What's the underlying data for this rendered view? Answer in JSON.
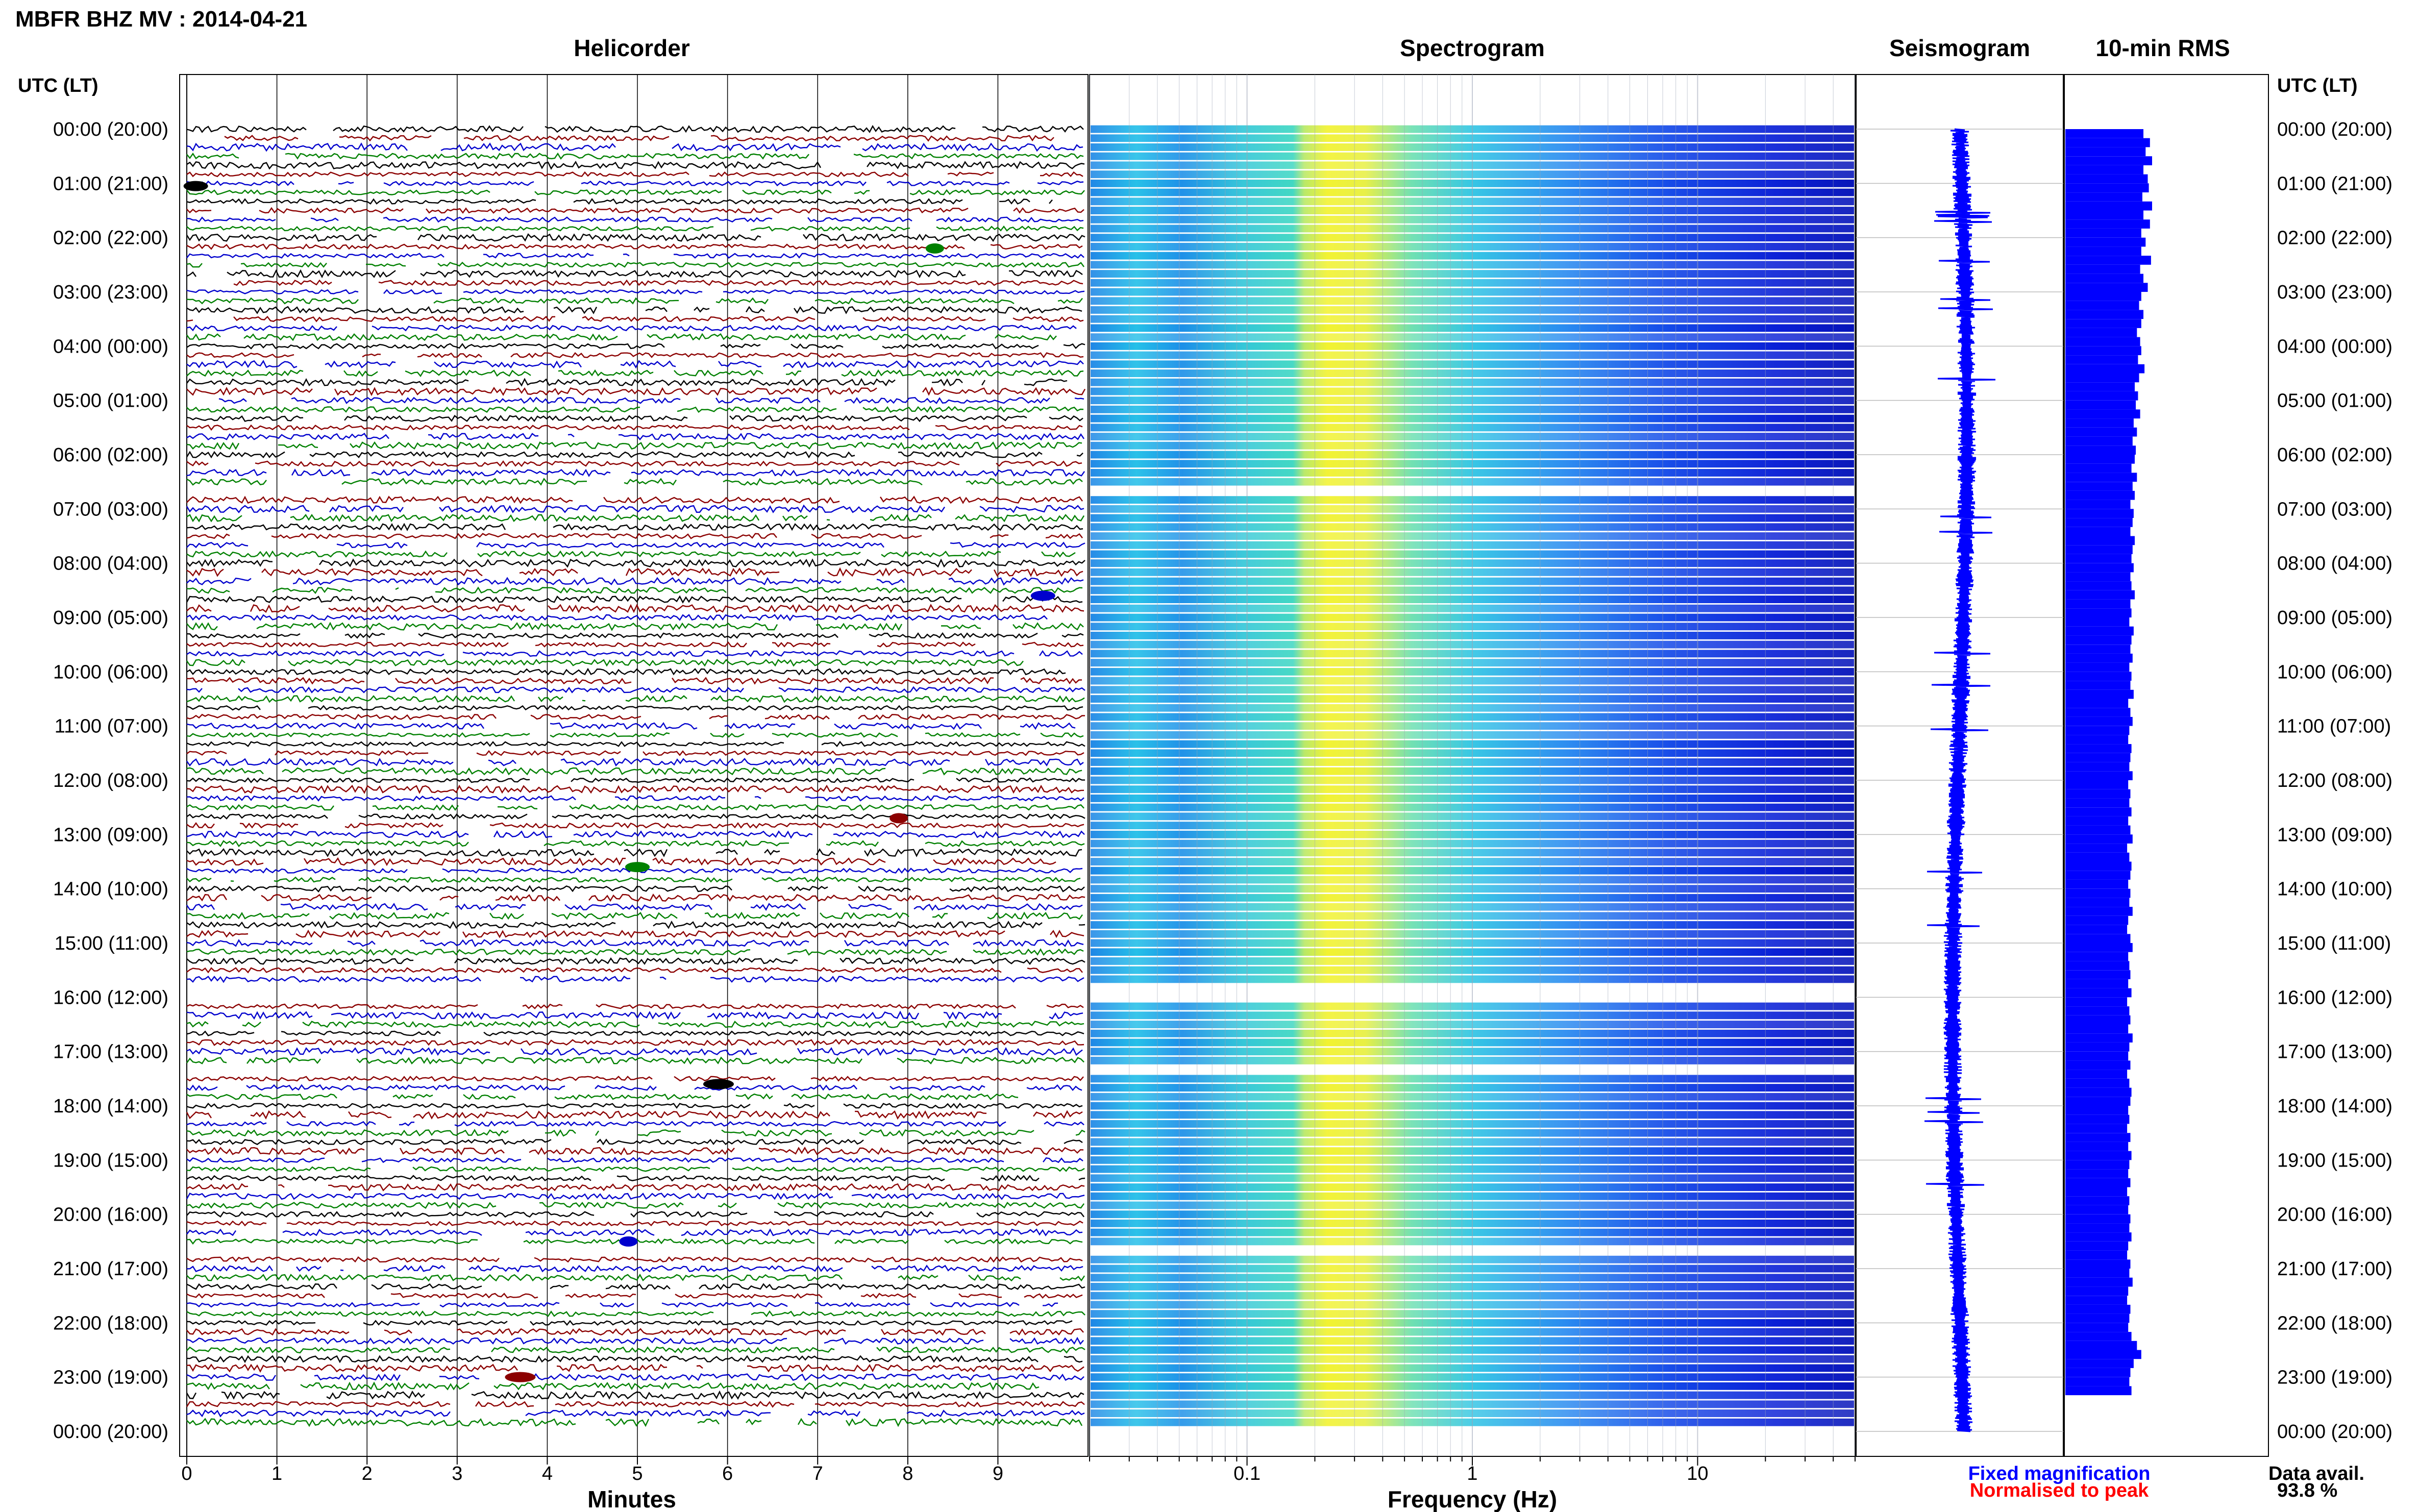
{
  "header": {
    "title": "MBFR BHZ MV : 2014-04-21",
    "utc_label_left": "UTC (LT)",
    "utc_label_right": "UTC (LT)"
  },
  "panels": {
    "helicorder": "Helicorder",
    "spectrogram": "Spectrogram",
    "seismogram": "Seismogram",
    "rms": "10-min RMS"
  },
  "axes": {
    "minutes_label": "Minutes",
    "frequency_label": "Frequency (Hz)",
    "minute_ticks": [
      "0",
      "1",
      "2",
      "3",
      "4",
      "5",
      "6",
      "7",
      "8",
      "9"
    ],
    "frequency_ticks": [
      "0.1",
      "1",
      "10"
    ]
  },
  "footer": {
    "fixed_magnification": "Fixed magnification",
    "normalised_to_peak": "Normalised to peak",
    "data_avail_label": "Data avail.",
    "data_avail_value": "93.8 %"
  },
  "colors": {
    "trace_cycle": [
      "#000000",
      "#8b0000",
      "#0000cd",
      "#008000"
    ],
    "fixed_magnification": "#0000ff",
    "normalised_to_peak": "#ff0000",
    "rms_bar": "#0000ff",
    "seismogram_trace": "#0000ff"
  },
  "chart_data": {
    "type": "heatmap",
    "hour_labels": [
      "00:00 (20:00)",
      "01:00 (21:00)",
      "02:00 (22:00)",
      "03:00 (23:00)",
      "04:00 (00:00)",
      "05:00 (01:00)",
      "06:00 (02:00)",
      "07:00 (03:00)",
      "08:00 (04:00)",
      "09:00 (05:00)",
      "10:00 (06:00)",
      "11:00 (07:00)",
      "12:00 (08:00)",
      "13:00 (09:00)",
      "14:00 (10:00)",
      "15:00 (11:00)",
      "16:00 (12:00)",
      "17:00 (13:00)",
      "18:00 (14:00)",
      "19:00 (15:00)",
      "20:00 (16:00)",
      "21:00 (17:00)",
      "22:00 (18:00)",
      "23:00 (19:00)",
      "00:00 (20:00)"
    ],
    "helicorder_minutes_range": [
      0,
      10
    ],
    "frequency_range_hz": [
      0.02,
      50
    ],
    "frequency_log_scale": true,
    "data_gap_hours": [
      6.7,
      15.95,
      17.3,
      20.65
    ],
    "rms_10min_relative": [
      0.72,
      0.78,
      0.74,
      0.8,
      0.72,
      0.76,
      0.77,
      0.71,
      0.8,
      0.72,
      0.78,
      0.7,
      0.74,
      0.7,
      0.79,
      0.69,
      0.72,
      0.76,
      0.7,
      0.68,
      0.72,
      0.7,
      0.66,
      0.69,
      0.7,
      0.67,
      0.73,
      0.68,
      0.64,
      0.67,
      0.65,
      0.69,
      0.63,
      0.66,
      0.62,
      0.65,
      0.64,
      0.61,
      0.66,
      0.62,
      0.64,
      0.6,
      0.63,
      0.62,
      0.6,
      0.64,
      0.62,
      0.61,
      0.63,
      0.6,
      0.61,
      0.64,
      0.6,
      0.61,
      0.59,
      0.63,
      0.61,
      0.6,
      0.62,
      0.59,
      0.61,
      0.6,
      0.63,
      0.58,
      0.6,
      0.62,
      0.59,
      0.58,
      0.61,
      0.6,
      0.59,
      0.62,
      0.58,
      0.6,
      0.59,
      0.61,
      0.58,
      0.6,
      0.62,
      0.57,
      0.59,
      0.61,
      0.6,
      0.58,
      0.6,
      0.59,
      0.62,
      0.58,
      0.57,
      0.6,
      0.62,
      0.58,
      0.59,
      0.6,
      0.58,
      0.61,
      0.57,
      0.59,
      0.6,
      0.58,
      0.62,
      0.59,
      0.58,
      0.6,
      0.57,
      0.59,
      0.61,
      0.6,
      0.58,
      0.59,
      0.57,
      0.6,
      0.58,
      0.61,
      0.59,
      0.58,
      0.6,
      0.57,
      0.59,
      0.58,
      0.6,
      0.59,
      0.61,
      0.58,
      0.57,
      0.6,
      0.59,
      0.62,
      0.58,
      0.57,
      0.6,
      0.59,
      0.58,
      0.61,
      0.66,
      0.7,
      0.63,
      0.6,
      0.59,
      0.61
    ]
  }
}
